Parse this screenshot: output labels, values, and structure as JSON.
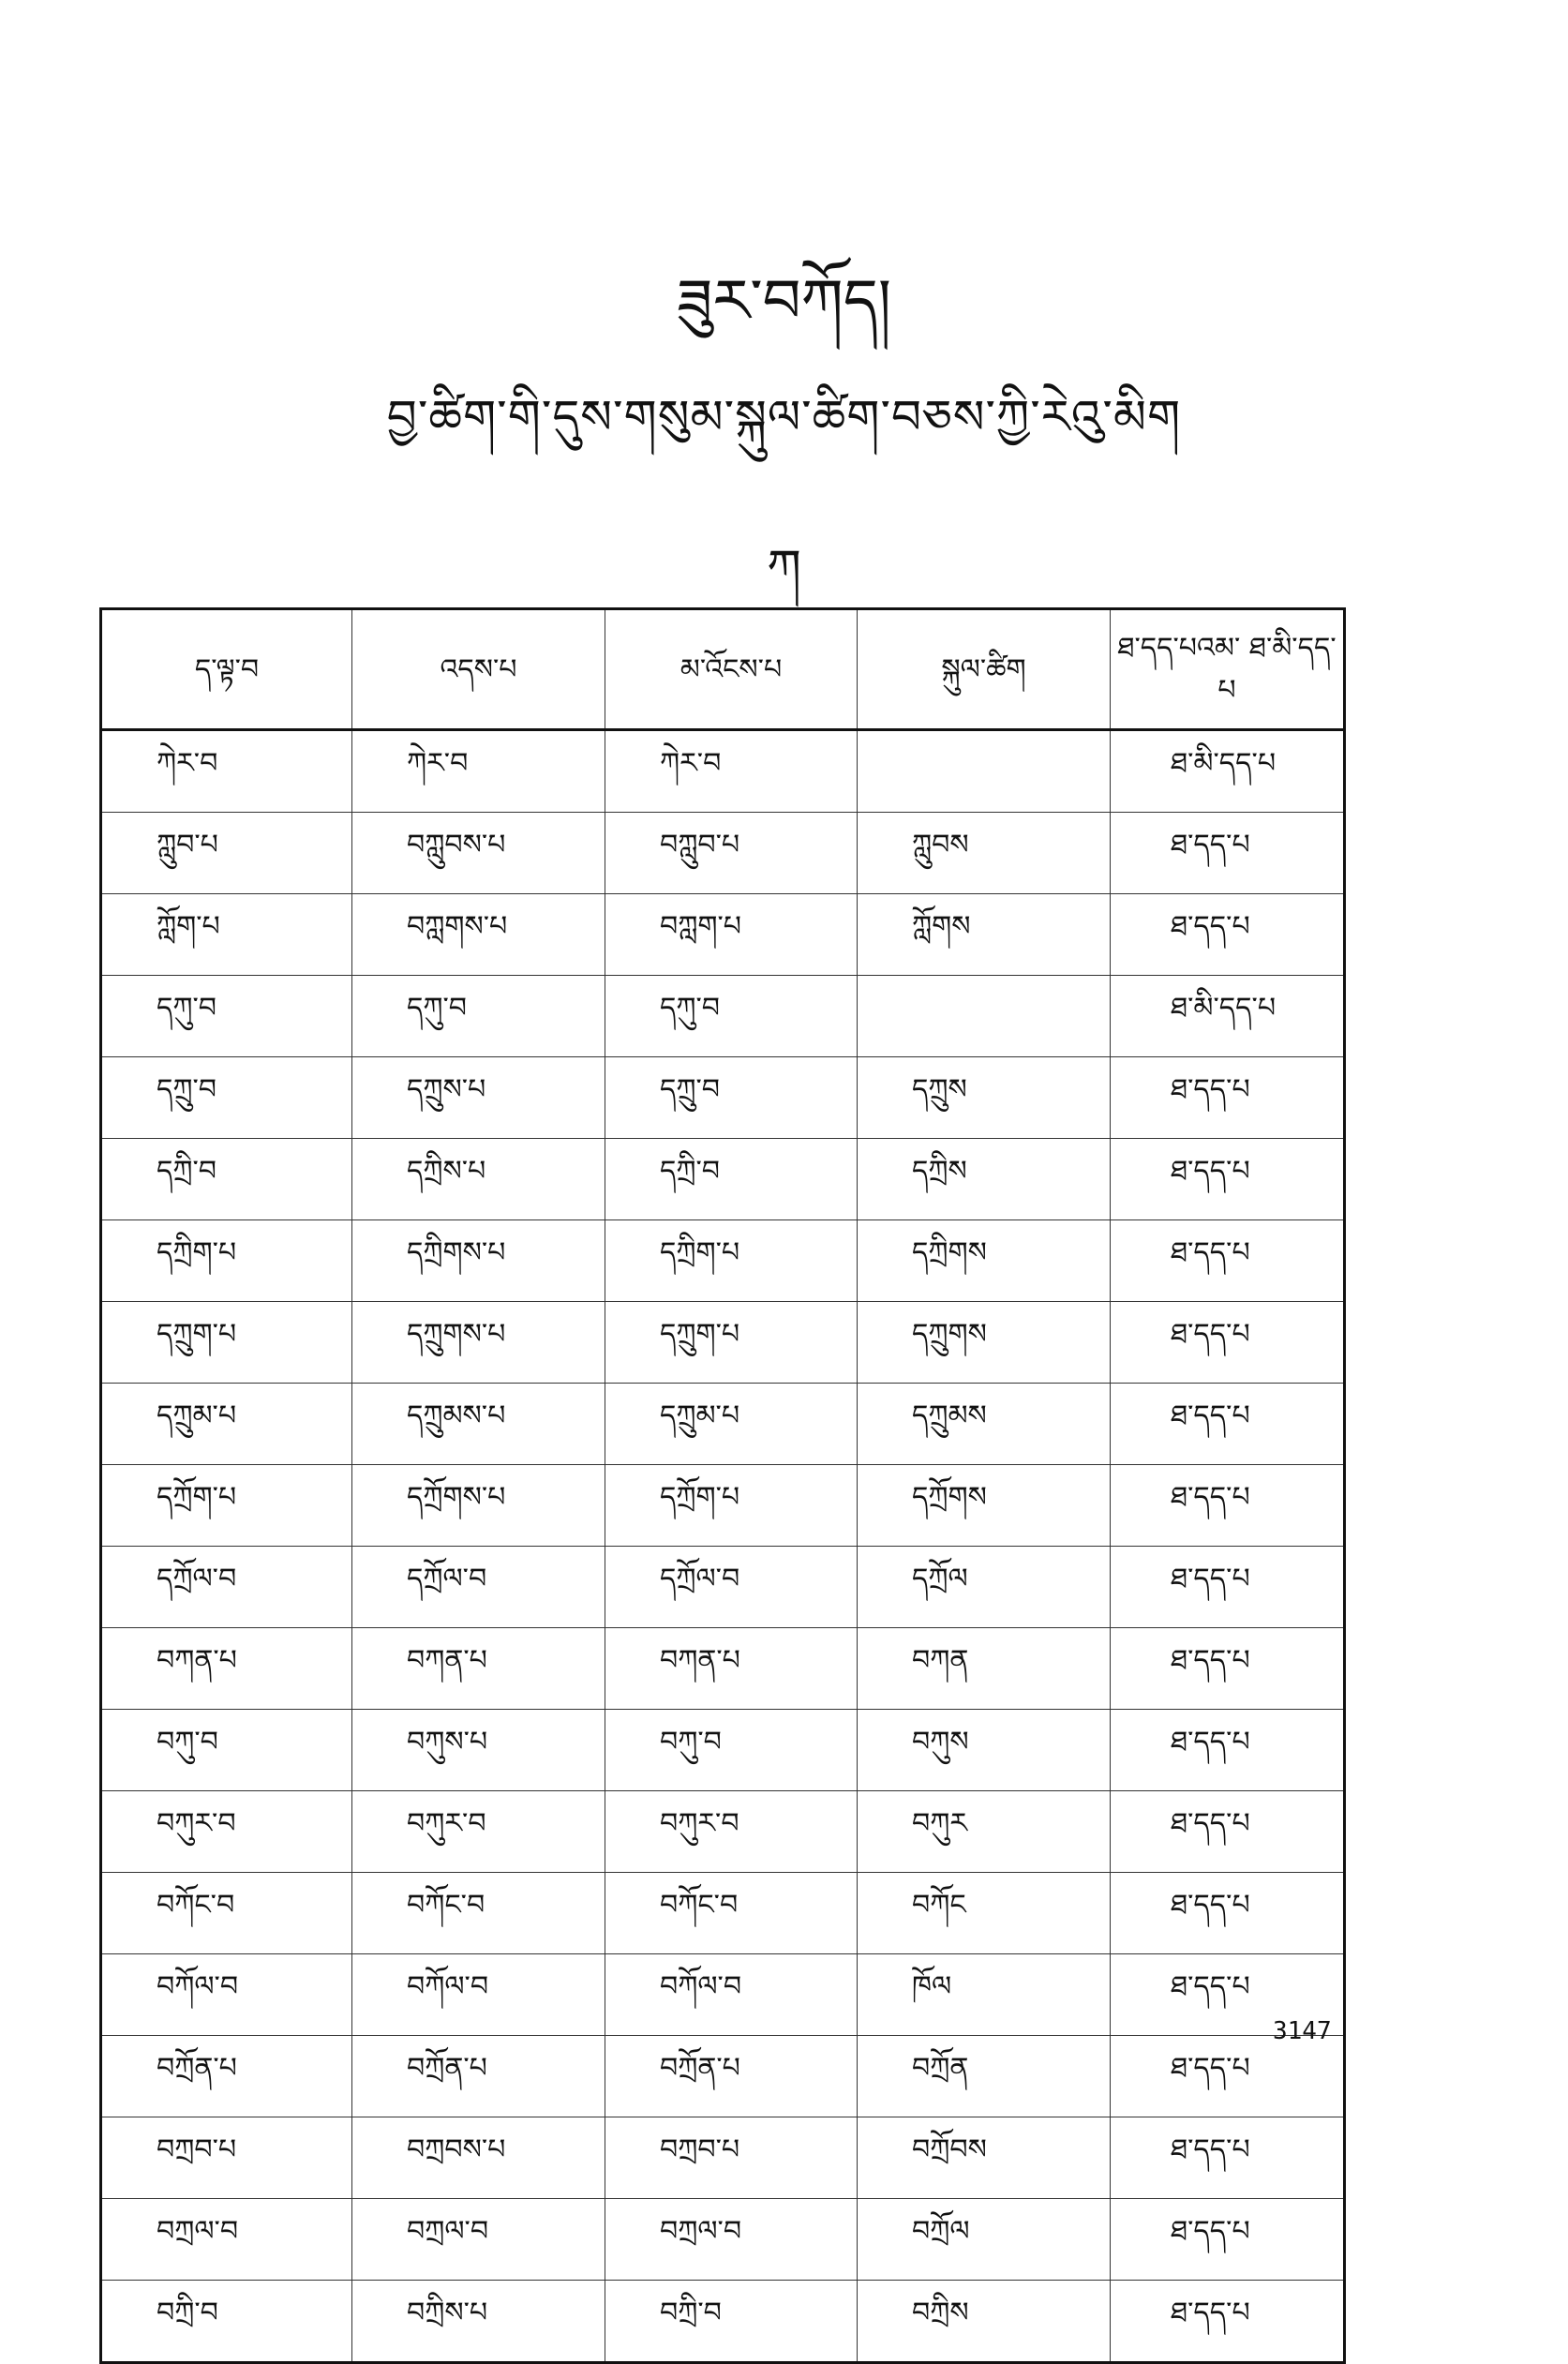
{
  "title": "ཟུར་བཀོད།",
  "subtitle": "བྱ་ཚིག་གི་དུས་གསུམ་སྐུལ་ཚིག་བཅས་ཀྱི་རེའུ་མིག",
  "section_letter": "ཀ",
  "table": {
    "headers": [
      "ད་ལྟ་བ",
      "འདས་པ",
      "མ་འོངས་པ",
      "སྐུལ་ཚིག",
      "ཐ་དད་པའམ་ ཐ་མི་དད་པ"
    ],
    "rows": [
      [
        "ཀེར་བ",
        "ཀེར་བ",
        "ཀེར་བ",
        "",
        "ཐ་མི་དད་པ"
      ],
      [
        "ཀླུབ་པ",
        "བཀླུབས་པ",
        "བཀླུབ་པ",
        "ཀླུབས",
        "ཐ་དད་པ"
      ],
      [
        "ཀློག་པ",
        "བཀླགས་པ",
        "བཀླག་པ",
        "ཀློགས",
        "ཐ་དད་པ"
      ],
      [
        "དཀུ་བ",
        "དཀུ་བ",
        "དཀུ་བ",
        "",
        "ཐ་མི་དད་པ"
      ],
      [
        "དཀྲུ་བ",
        "དཀྲུས་པ",
        "དཀྲུ་བ",
        "དཀྲུས",
        "ཐ་དད་པ"
      ],
      [
        "དཀྲི་བ",
        "དཀྲིས་པ",
        "དཀྲི་བ",
        "དཀྲིས",
        "ཐ་དད་པ"
      ],
      [
        "དཀྲིག་པ",
        "དཀྲིགས་པ",
        "དཀྲིག་པ",
        "དཀྲིགས",
        "ཐ་དད་པ"
      ],
      [
        "དཀྲུག་པ",
        "དཀྲུགས་པ",
        "དཀྲུག་པ",
        "དཀྲུགས",
        "ཐ་དད་པ"
      ],
      [
        "དཀྲུམ་པ",
        "དཀྲུམས་པ",
        "དཀྲུམ་པ",
        "དཀྲུམས",
        "ཐ་དད་པ"
      ],
      [
        "དཀྲོག་པ",
        "དཀྲོགས་པ",
        "དཀྲོག་པ",
        "དཀྲོགས",
        "ཐ་དད་པ"
      ],
      [
        "དཀྲོལ་བ",
        "དཀྲོལ་བ",
        "དཀྲོལ་བ",
        "དཀྲོལ",
        "ཐ་དད་པ"
      ],
      [
        "བཀན་པ",
        "བཀན་པ",
        "བཀན་པ",
        "བཀན",
        "ཐ་དད་པ"
      ],
      [
        "བཀུ་བ",
        "བཀུས་པ",
        "བཀུ་བ",
        "བཀུས",
        "ཐ་དད་པ"
      ],
      [
        "བཀུར་བ",
        "བཀུར་བ",
        "བཀུར་བ",
        "བཀུར",
        "ཐ་དད་པ"
      ],
      [
        "བཀོང་བ",
        "བཀོང་བ",
        "བཀོང་བ",
        "བཀོང",
        "ཐ་དད་པ"
      ],
      [
        "བཀོལ་བ",
        "བཀོལ་བ",
        "བཀོལ་བ",
        "ཁོལ",
        "ཐ་དད་པ"
      ],
      [
        "བཀྲོན་པ",
        "བཀྲོན་པ",
        "བཀྲོན་པ",
        "བཀྲོན",
        "ཐ་དད་པ"
      ],
      [
        "བཀྲབ་པ",
        "བཀྲབས་པ",
        "བཀྲབ་པ",
        "བཀྲོབས",
        "ཐ་དད་པ"
      ],
      [
        "བཀྲལ་བ",
        "བཀྲལ་བ",
        "བཀྲལ་བ",
        "བཀྲོལ",
        "ཐ་དད་པ"
      ],
      [
        "བཀྲི་བ",
        "བཀྲིས་པ",
        "བཀྲི་བ",
        "བཀྲིས",
        "ཐ་དད་པ"
      ]
    ]
  },
  "page_number": "3147"
}
